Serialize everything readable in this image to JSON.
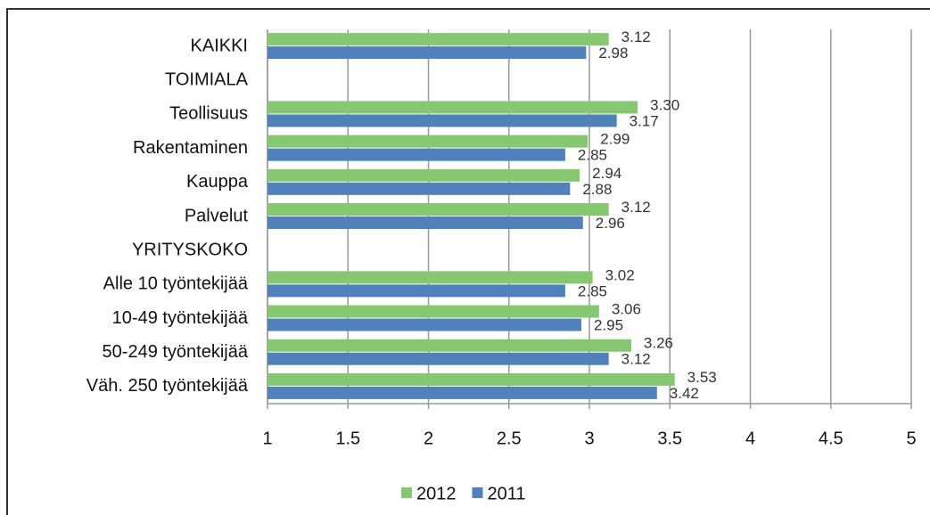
{
  "chart_data": {
    "type": "hbar",
    "categories": [
      "KAIKKI",
      "TOIMIALA",
      "Teollisuus",
      "Rakentaminen",
      "Kauppa",
      "Palvelut",
      "YRITYSKOKO",
      "Alle 10 työntekijää",
      "10-49 työntekijää",
      "50-249 työntekijää",
      "Väh. 250 työntekijää"
    ],
    "series": [
      {
        "name": "2012",
        "color": "#86c870",
        "values": [
          3.12,
          null,
          3.3,
          2.99,
          2.94,
          3.12,
          null,
          3.02,
          3.06,
          3.26,
          3.53
        ],
        "value_labels": [
          "3.12",
          null,
          "3.30",
          "2.99",
          "2.94",
          "3.12",
          null,
          "3.02",
          "3.06",
          "3.26",
          "3.53"
        ]
      },
      {
        "name": "2011",
        "color": "#4f81bd",
        "values": [
          2.98,
          null,
          3.17,
          2.85,
          2.88,
          2.96,
          null,
          2.85,
          2.95,
          3.12,
          3.42
        ],
        "value_labels": [
          "2.98",
          null,
          "3.17",
          "2.85",
          "2.88",
          "2.96",
          null,
          "2.85",
          "2.95",
          "3.12",
          "3.42"
        ]
      }
    ],
    "xlim": [
      1,
      5
    ],
    "xticks": [
      1,
      1.5,
      2,
      2.5,
      3,
      3.5,
      4,
      4.5,
      5
    ],
    "grid": true,
    "legend": "bottom"
  }
}
